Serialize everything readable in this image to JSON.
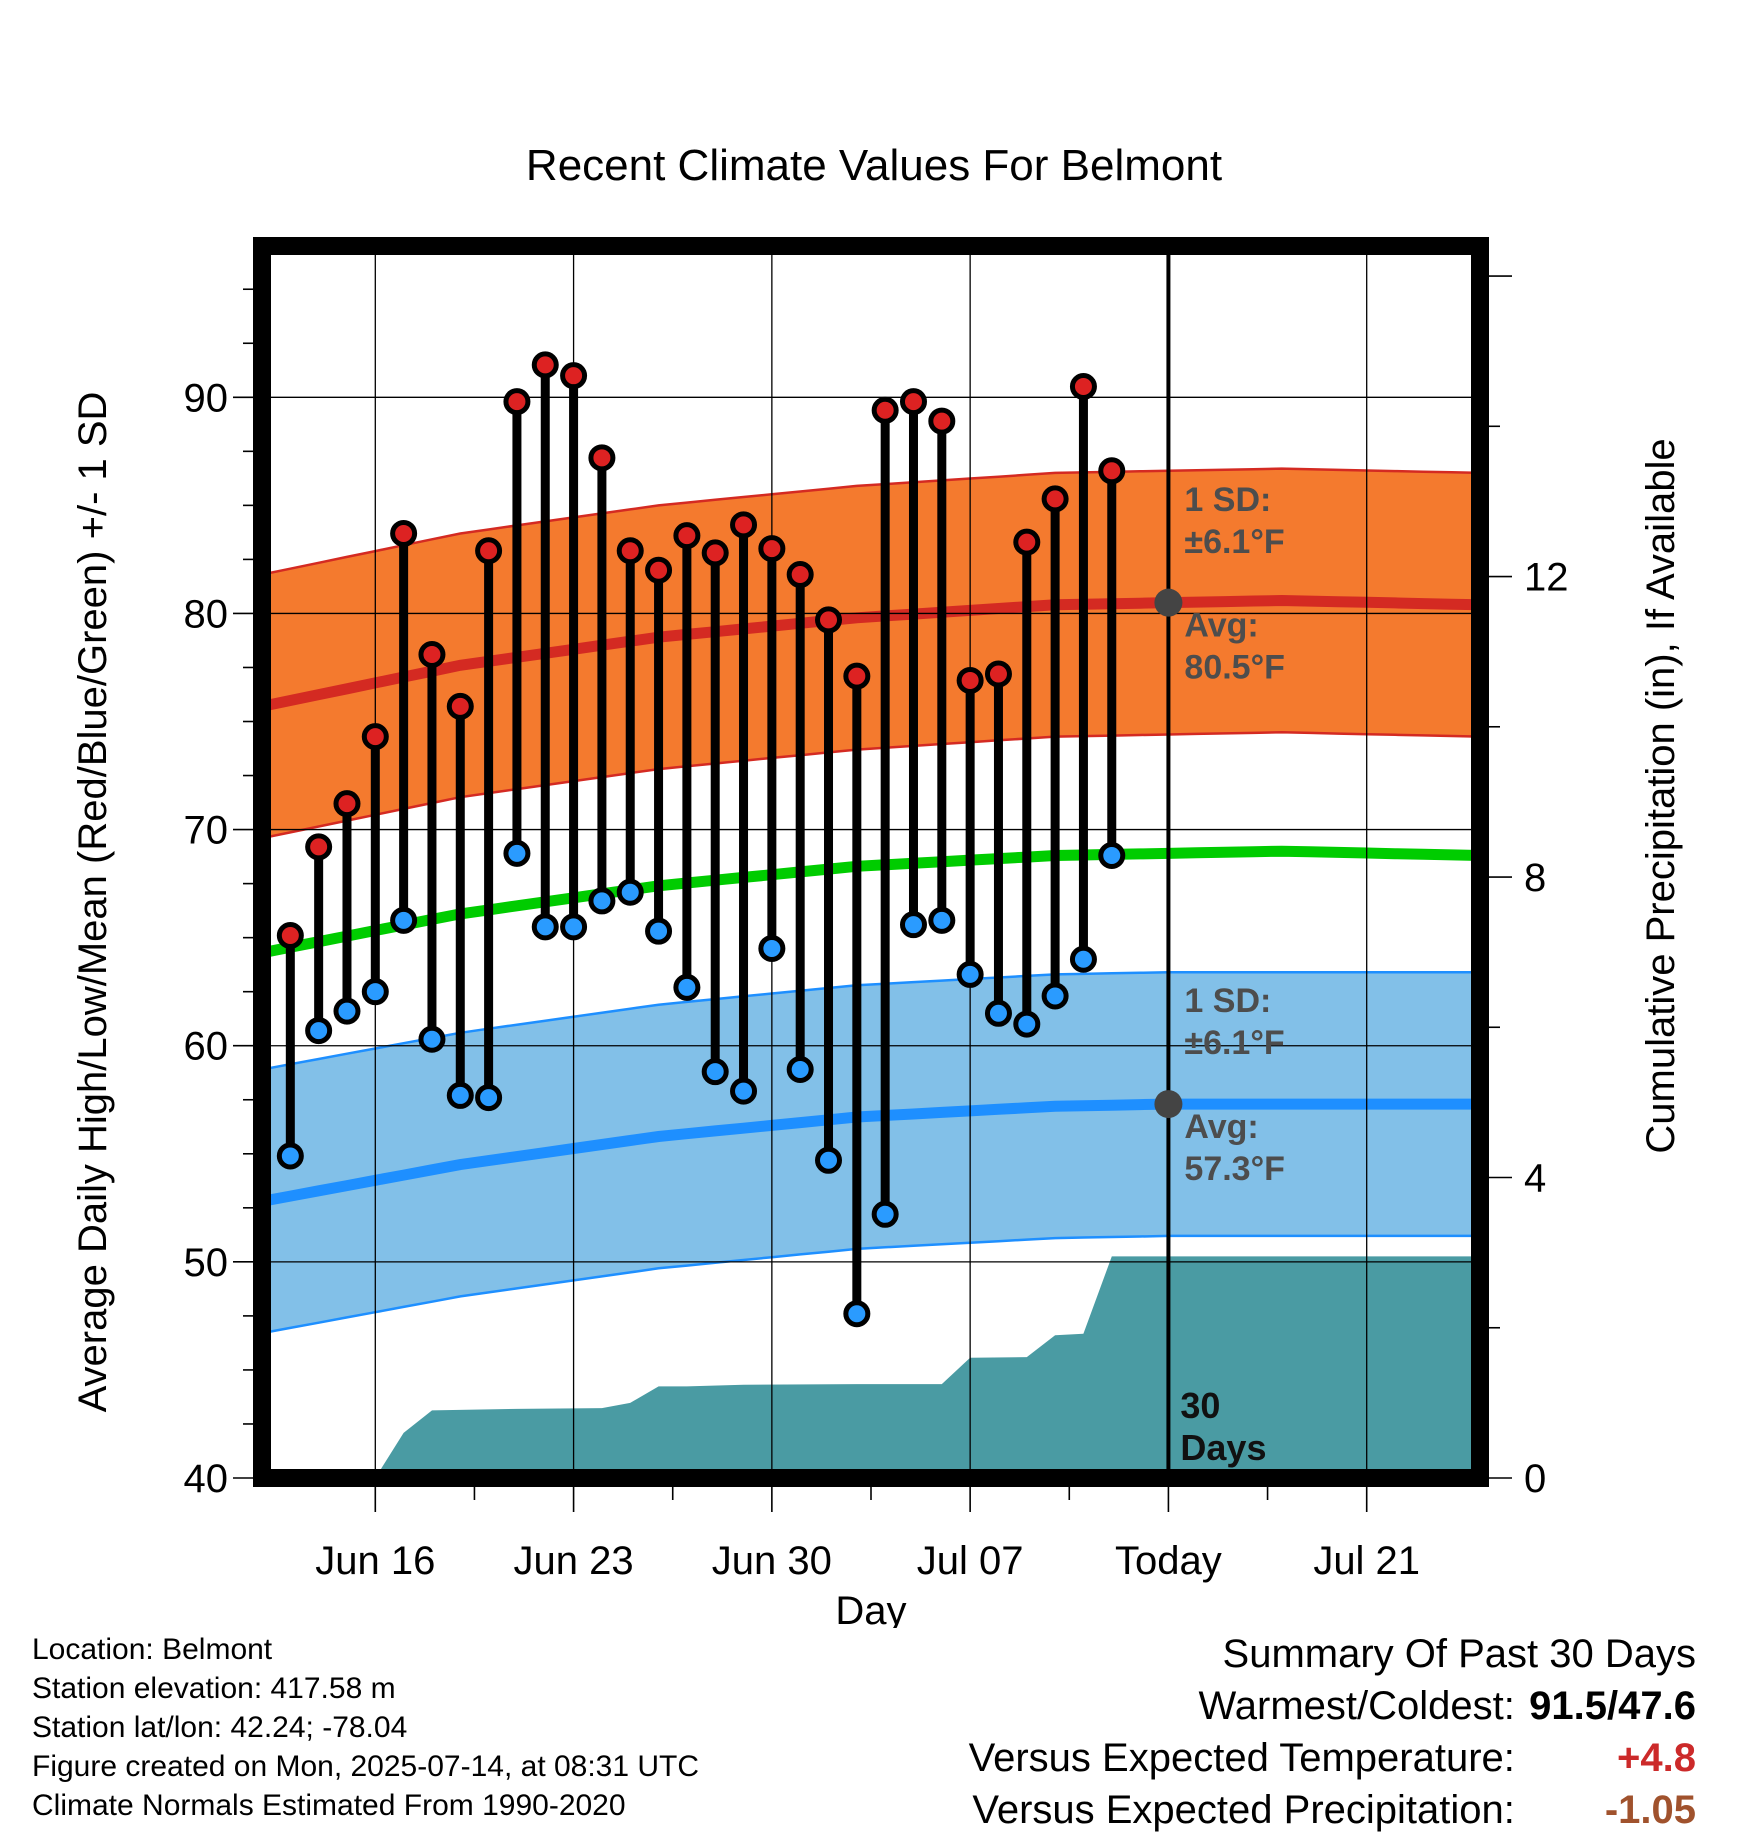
{
  "chart_data": {
    "type": "line",
    "title": "Recent Climate Values For Belmont",
    "xlabel": "Day",
    "ylabel": "Average Daily High/Low/Mean (Red/Blue/Green) +/- 1 SD",
    "y2label": "Cumulative Precipitation (in), If Available",
    "ylim": [
      40,
      97
    ],
    "y2lim": [
      0,
      16.4
    ],
    "xlim": [
      "2025-06-12",
      "2025-07-25"
    ],
    "yticks": [
      40,
      50,
      60,
      70,
      80,
      90
    ],
    "y2ticks": [
      0,
      4,
      8,
      12
    ],
    "xticks": [
      {
        "date": "2025-06-16",
        "label": "Jun 16"
      },
      {
        "date": "2025-06-23",
        "label": "Jun 23"
      },
      {
        "date": "2025-06-30",
        "label": "Jun 30"
      },
      {
        "date": "2025-07-07",
        "label": "Jul 07"
      },
      {
        "date": "2025-07-14",
        "label": "Today"
      },
      {
        "date": "2025-07-21",
        "label": "Jul 21"
      }
    ],
    "grid": true,
    "today": "2025-07-14",
    "today_label": "30\nDays",
    "highs": [
      {
        "date": "2025-06-13",
        "value": 65.1
      },
      {
        "date": "2025-06-14",
        "value": 69.2
      },
      {
        "date": "2025-06-15",
        "value": 71.2
      },
      {
        "date": "2025-06-16",
        "value": 74.3
      },
      {
        "date": "2025-06-17",
        "value": 83.7
      },
      {
        "date": "2025-06-18",
        "value": 78.1
      },
      {
        "date": "2025-06-19",
        "value": 75.7
      },
      {
        "date": "2025-06-20",
        "value": 82.9
      },
      {
        "date": "2025-06-21",
        "value": 89.8
      },
      {
        "date": "2025-06-22",
        "value": 91.5
      },
      {
        "date": "2025-06-23",
        "value": 91.0
      },
      {
        "date": "2025-06-24",
        "value": 87.2
      },
      {
        "date": "2025-06-25",
        "value": 82.9
      },
      {
        "date": "2025-06-26",
        "value": 82.0
      },
      {
        "date": "2025-06-27",
        "value": 83.6
      },
      {
        "date": "2025-06-28",
        "value": 82.8
      },
      {
        "date": "2025-06-29",
        "value": 84.1
      },
      {
        "date": "2025-06-30",
        "value": 83.0
      },
      {
        "date": "2025-07-01",
        "value": 81.8
      },
      {
        "date": "2025-07-02",
        "value": 79.7
      },
      {
        "date": "2025-07-03",
        "value": 77.1
      },
      {
        "date": "2025-07-04",
        "value": 89.4
      },
      {
        "date": "2025-07-05",
        "value": 89.8
      },
      {
        "date": "2025-07-06",
        "value": 88.9
      },
      {
        "date": "2025-07-07",
        "value": 76.9
      },
      {
        "date": "2025-07-08",
        "value": 77.2
      },
      {
        "date": "2025-07-09",
        "value": 83.3
      },
      {
        "date": "2025-07-10",
        "value": 85.3
      },
      {
        "date": "2025-07-11",
        "value": 90.5
      },
      {
        "date": "2025-07-12",
        "value": 86.6
      }
    ],
    "lows": [
      {
        "date": "2025-06-13",
        "value": 54.9
      },
      {
        "date": "2025-06-14",
        "value": 60.7
      },
      {
        "date": "2025-06-15",
        "value": 61.6
      },
      {
        "date": "2025-06-16",
        "value": 62.5
      },
      {
        "date": "2025-06-17",
        "value": 65.8
      },
      {
        "date": "2025-06-18",
        "value": 60.3
      },
      {
        "date": "2025-06-19",
        "value": 57.7
      },
      {
        "date": "2025-06-20",
        "value": 57.6
      },
      {
        "date": "2025-06-21",
        "value": 68.9
      },
      {
        "date": "2025-06-22",
        "value": 65.5
      },
      {
        "date": "2025-06-23",
        "value": 65.5
      },
      {
        "date": "2025-06-24",
        "value": 66.7
      },
      {
        "date": "2025-06-25",
        "value": 67.1
      },
      {
        "date": "2025-06-26",
        "value": 65.3
      },
      {
        "date": "2025-06-27",
        "value": 62.7
      },
      {
        "date": "2025-06-28",
        "value": 58.8
      },
      {
        "date": "2025-06-29",
        "value": 57.9
      },
      {
        "date": "2025-06-30",
        "value": 64.5
      },
      {
        "date": "2025-07-01",
        "value": 58.9
      },
      {
        "date": "2025-07-02",
        "value": 54.7
      },
      {
        "date": "2025-07-03",
        "value": 47.6
      },
      {
        "date": "2025-07-04",
        "value": 52.2
      },
      {
        "date": "2025-07-05",
        "value": 65.6
      },
      {
        "date": "2025-07-06",
        "value": 65.8
      },
      {
        "date": "2025-07-07",
        "value": 63.3
      },
      {
        "date": "2025-07-08",
        "value": 61.5
      },
      {
        "date": "2025-07-09",
        "value": 61.0
      },
      {
        "date": "2025-07-10",
        "value": 62.3
      },
      {
        "date": "2025-07-11",
        "value": 64.0
      },
      {
        "date": "2025-07-12",
        "value": 68.8
      }
    ],
    "normal_high": {
      "dates": [
        "2025-06-12",
        "2025-06-19",
        "2025-06-26",
        "2025-07-03",
        "2025-07-10",
        "2025-07-14",
        "2025-07-18",
        "2025-07-25"
      ],
      "avg": [
        75.7,
        77.6,
        78.9,
        79.8,
        80.4,
        80.5,
        80.6,
        80.4
      ],
      "sd": 6.1
    },
    "normal_low": {
      "dates": [
        "2025-06-12",
        "2025-06-19",
        "2025-06-26",
        "2025-07-03",
        "2025-07-10",
        "2025-07-14",
        "2025-07-18",
        "2025-07-25"
      ],
      "avg": [
        52.8,
        54.5,
        55.8,
        56.7,
        57.2,
        57.3,
        57.3,
        57.3
      ],
      "sd": 6.1
    },
    "normal_mean": {
      "dates": [
        "2025-06-12",
        "2025-06-19",
        "2025-06-26",
        "2025-07-03",
        "2025-07-10",
        "2025-07-14",
        "2025-07-18",
        "2025-07-25"
      ],
      "values": [
        64.3,
        66.1,
        67.4,
        68.3,
        68.8,
        68.9,
        69.0,
        68.8
      ]
    },
    "precip_cumulative": [
      {
        "date": "2025-06-12",
        "value": 0.0
      },
      {
        "date": "2025-06-16",
        "value": 0.0
      },
      {
        "date": "2025-06-17",
        "value": 0.6
      },
      {
        "date": "2025-06-18",
        "value": 0.9
      },
      {
        "date": "2025-06-21",
        "value": 0.92
      },
      {
        "date": "2025-06-24",
        "value": 0.93
      },
      {
        "date": "2025-06-25",
        "value": 1.0
      },
      {
        "date": "2025-06-26",
        "value": 1.22
      },
      {
        "date": "2025-06-27",
        "value": 1.22
      },
      {
        "date": "2025-06-29",
        "value": 1.24
      },
      {
        "date": "2025-07-03",
        "value": 1.25
      },
      {
        "date": "2025-07-06",
        "value": 1.25
      },
      {
        "date": "2025-07-07",
        "value": 1.6
      },
      {
        "date": "2025-07-09",
        "value": 1.61
      },
      {
        "date": "2025-07-10",
        "value": 1.9
      },
      {
        "date": "2025-07-11",
        "value": 1.92
      },
      {
        "date": "2025-07-12",
        "value": 2.95
      },
      {
        "date": "2025-07-25",
        "value": 2.95
      }
    ],
    "annotations": {
      "high_sd_label": "1 SD:",
      "high_sd_value": "±6.1°F",
      "high_avg_label": "Avg:",
      "high_avg_value": "80.5°F",
      "low_sd_label": "1 SD:",
      "low_sd_value": "±6.1°F",
      "low_avg_label": "Avg:",
      "low_avg_value": "57.3°F"
    },
    "colors": {
      "high_band": "#f47a2e",
      "high_band_edge": "#d42a22",
      "high_avg": "#d42a22",
      "low_band": "#82c0e8",
      "low_band_edge": "#1e8fff",
      "low_avg": "#1e8fff",
      "mean": "#00cc00",
      "precip": "#4a9ba3",
      "high_marker": "#dd2222",
      "low_marker": "#2a9bff",
      "annotation_text": "#4d4d4d"
    }
  },
  "footer": {
    "location": "Location: Belmont",
    "elevation": "Station elevation: 417.58 m",
    "latlon": "Station lat/lon: 42.24; -78.04",
    "created": "Figure created on Mon, 2025-07-14, at 08:31 UTC",
    "normals": "Climate Normals Estimated From 1990-2020"
  },
  "summary": {
    "heading": "Summary Of Past 30 Days",
    "warm_cold_label": "Warmest/Coldest:",
    "warm_cold_value": "91.5/47.6",
    "temp_label": "Versus Expected Temperature:",
    "temp_value": "+4.8",
    "temp_color": "#cc2a2a",
    "precip_label": "Versus Expected Precipitation:",
    "precip_value": "-1.05",
    "precip_color": "#a0522d"
  }
}
